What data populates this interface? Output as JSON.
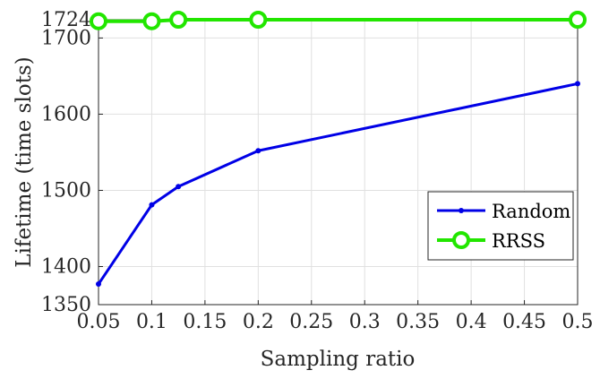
{
  "chart_data": {
    "type": "line",
    "title": "",
    "xlabel": "Sampling ratio",
    "ylabel": "Lifetime (time slots)",
    "xlim": [
      0.05,
      0.5
    ],
    "ylim": [
      1350,
      1724
    ],
    "xticks": [
      0.05,
      0.1,
      0.15,
      0.2,
      0.25,
      0.3,
      0.35,
      0.4,
      0.45,
      0.5
    ],
    "xtick_labels": [
      "0.05",
      "0.1",
      "0.15",
      "0.2",
      "0.25",
      "0.3",
      "0.35",
      "0.4",
      "0.45",
      "0.5"
    ],
    "yticks": [
      1350,
      1400,
      1500,
      1600,
      1700,
      1724
    ],
    "ytick_labels": [
      "1350",
      "1400",
      "1500",
      "1600",
      "1700",
      "1724"
    ],
    "grid": true,
    "legend_position": "bottom-right",
    "series": [
      {
        "name": "Random",
        "color": "#0000e6",
        "marker": "dot",
        "x": [
          0.05,
          0.1,
          0.125,
          0.2,
          0.5
        ],
        "y": [
          1377,
          1481,
          1505,
          1552,
          1640
        ]
      },
      {
        "name": "RRSS",
        "color": "#22e600",
        "marker": "circle",
        "x": [
          0.05,
          0.1,
          0.125,
          0.2,
          0.5
        ],
        "y": [
          1722,
          1722,
          1724,
          1724,
          1724
        ]
      }
    ]
  }
}
